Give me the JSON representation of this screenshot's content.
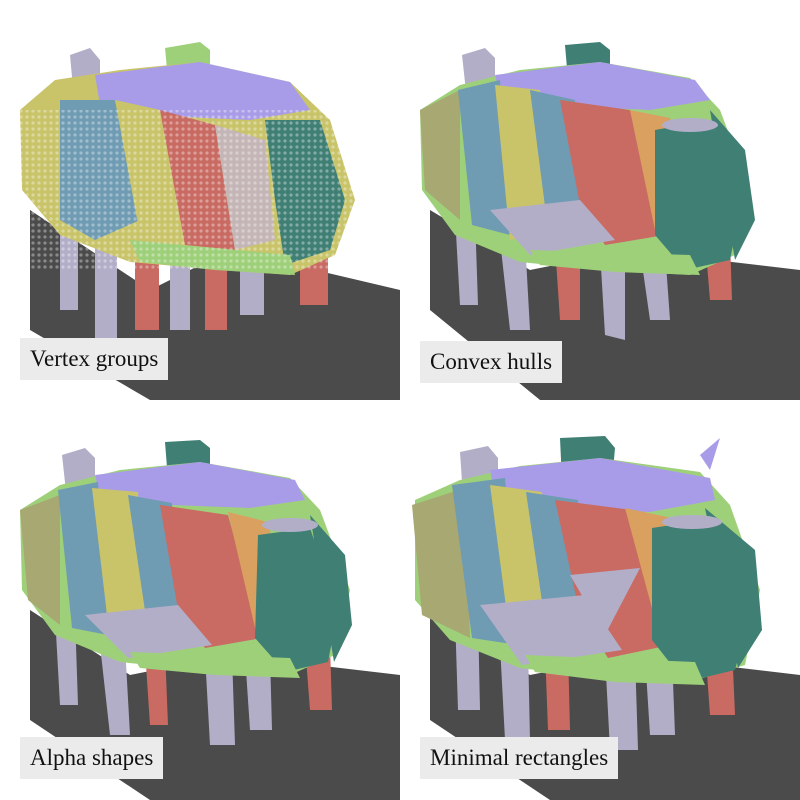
{
  "panels": [
    {
      "caption": "Vertex groups"
    },
    {
      "caption": "Convex hulls"
    },
    {
      "caption": "Alpha shapes"
    },
    {
      "caption": "Minimal rectangles"
    }
  ],
  "colors": {
    "purple": "#a89ce8",
    "blue": "#6f9bb3",
    "yellow": "#c9c46a",
    "red": "#c96b63",
    "teal": "#3f7f74",
    "green": "#9ed07a",
    "olive": "#a8a872",
    "lavender": "#b3aec8",
    "shadow": "#4b4b4b"
  }
}
